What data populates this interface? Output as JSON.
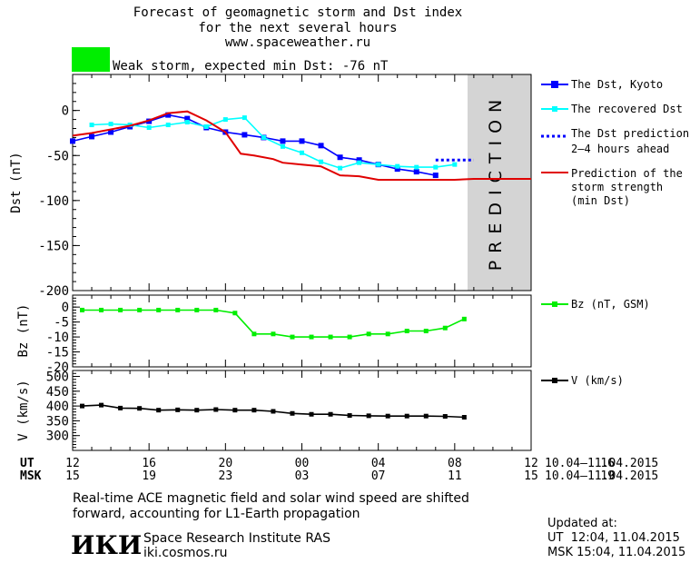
{
  "header": {
    "line1": "Forecast of geomagnetic storm and Dst index",
    "line2": "for the next several hours",
    "line3": "www.spaceweather.ru"
  },
  "status": {
    "label": "Weak storm, expected min Dst: -76 nT",
    "color": "#00ee00"
  },
  "colors": {
    "dst_kyoto": "#0000ff",
    "dst_recovered": "#00ffff",
    "dst_prediction": "#0000ff",
    "storm_strength": "#e00000",
    "bz": "#00ee00",
    "v": "#000000",
    "prediction_band": "#d4d4d4"
  },
  "prediction_label": "PREDICTION",
  "legend": {
    "dst_kyoto": "The Dst, Kyoto",
    "dst_recovered": "The recovered Dst",
    "dst_pred_1": "The Dst prediction",
    "dst_pred_2": "2–4 hours ahead",
    "storm_1": "Prediction of the",
    "storm_2": "storm strength",
    "storm_3": "(min Dst)",
    "bz": "Bz (nT, GSM)",
    "v": "V (km/s)"
  },
  "time_axis": {
    "ut_label": "UT",
    "msk_label": "MSK",
    "ut_ticks": [
      "12",
      "16",
      "20",
      "00",
      "04",
      "08",
      "12",
      "16"
    ],
    "msk_ticks": [
      "15",
      "19",
      "23",
      "03",
      "07",
      "11",
      "15",
      "19"
    ],
    "date_range_ut": "10.04–11.04.2015",
    "date_range_msk": "10.04–11.04.2015"
  },
  "footer": {
    "note_line1": "Real-time ACE magnetic field and solar wind speed are shifted",
    "note_line2": "forward, accounting for L1-Earth propagation",
    "logo_text": "ИКИ",
    "institute": "Space Research Institute RAS",
    "site": "iki.cosmos.ru",
    "updated_label": "Updated at:",
    "updated_ut": "UT  12:04, 11.04.2015",
    "updated_msk": "MSK 15:04, 11.04.2015"
  },
  "chart_data": [
    {
      "type": "line",
      "ylabel": "Dst (nT)",
      "ylim": [
        -200,
        40
      ],
      "yticks": [
        0,
        -50,
        -100,
        -150,
        -200
      ],
      "xlim": [
        12,
        36
      ],
      "prediction_start": 31,
      "series": [
        {
          "name": "The Dst, Kyoto",
          "x": [
            12,
            13,
            14,
            15,
            16,
            17,
            18,
            19,
            20,
            21,
            22,
            23,
            24,
            25,
            26,
            27,
            28,
            29,
            30,
            31
          ],
          "values": [
            -34,
            -29,
            -24,
            -18,
            -12,
            -5,
            -9,
            -19,
            -24,
            -27,
            -30,
            -34,
            -34,
            -39,
            -52,
            -55,
            -60,
            -65,
            -68,
            -72
          ]
        },
        {
          "name": "The recovered Dst",
          "x": [
            13,
            14,
            15,
            16,
            17,
            18,
            19,
            20,
            21,
            22,
            23,
            24,
            25,
            26,
            27,
            28,
            29,
            30,
            31,
            32
          ],
          "values": [
            -16,
            -15,
            -16,
            -19,
            -16,
            -13,
            -18,
            -10,
            -8,
            -30,
            -40,
            -47,
            -57,
            -64,
            -58,
            -60,
            -62,
            -63,
            -63,
            -60
          ]
        },
        {
          "name": "The Dst prediction 2–4 hours ahead",
          "x": [
            31,
            32,
            33
          ],
          "values": [
            -55,
            -55,
            -55
          ]
        },
        {
          "name": "Prediction of the storm strength (min Dst)",
          "x": [
            12,
            13,
            14,
            15,
            16,
            17,
            18,
            19,
            20,
            20.8,
            21.5,
            22.5,
            23,
            24,
            25,
            26,
            27,
            28,
            29,
            30,
            31,
            32,
            33,
            36
          ],
          "values": [
            -28,
            -25,
            -21,
            -17,
            -11,
            -3,
            -1,
            -11,
            -24,
            -48,
            -50,
            -54,
            -58,
            -60,
            -62,
            -72,
            -73,
            -77,
            -77,
            -77,
            -77,
            -77,
            -76,
            -76
          ]
        }
      ]
    },
    {
      "type": "line",
      "ylabel": "Bz (nT)",
      "ylim": [
        -20,
        4
      ],
      "yticks": [
        0,
        -5,
        -10,
        -15,
        -20
      ],
      "series": [
        {
          "name": "Bz (nT, GSM)",
          "x": [
            12.5,
            13.5,
            14.5,
            15.5,
            16.5,
            17.5,
            18.5,
            19.5,
            20.5,
            21.5,
            22.5,
            23.5,
            24.5,
            25.5,
            26.5,
            27.5,
            28.5,
            29.5,
            30.5,
            31.5,
            32.5
          ],
          "values": [
            -1,
            -1,
            -1,
            -1,
            -1,
            -1,
            -1,
            -1,
            -2,
            -9,
            -9,
            -10,
            -10,
            -10,
            -10,
            -9,
            -9,
            -8,
            -8,
            -7,
            -4
          ]
        }
      ]
    },
    {
      "type": "line",
      "ylabel": "V (km/s)",
      "ylim": [
        250,
        520
      ],
      "yticks": [
        300,
        350,
        400,
        450,
        500
      ],
      "series": [
        {
          "name": "V (km/s)",
          "x": [
            12.5,
            13.5,
            14.5,
            15.5,
            16.5,
            17.5,
            18.5,
            19.5,
            20.5,
            21.5,
            22.5,
            23.5,
            24.5,
            25.5,
            26.5,
            27.5,
            28.5,
            29.5,
            30.5,
            31.5,
            32.5
          ],
          "values": [
            400,
            403,
            393,
            392,
            386,
            387,
            386,
            388,
            386,
            386,
            382,
            375,
            372,
            372,
            368,
            367,
            366,
            366,
            366,
            365,
            362
          ]
        }
      ]
    }
  ]
}
